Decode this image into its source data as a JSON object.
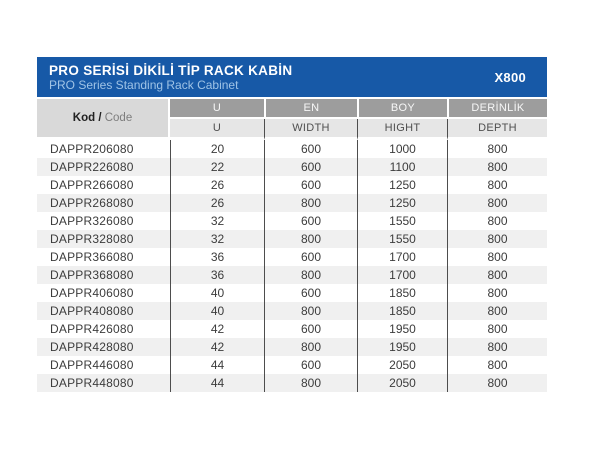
{
  "header": {
    "title_tr": "PRO SERİSİ DİKİLİ TİP RACK KABİN",
    "title_en": "PRO Series Standing Rack Cabinet",
    "model": "X800",
    "banner_color": "#1759a7"
  },
  "table": {
    "code_header": {
      "primary": "Kod /",
      "secondary": "Code"
    },
    "columns_tr": [
      "U",
      "EN",
      "BOY",
      "DERİNLİK"
    ],
    "columns_en": [
      "U",
      "WIDTH",
      "HIGHT",
      "DEPTH"
    ],
    "rows": [
      [
        "DAPPR206080",
        "20",
        "600",
        "1000",
        "800"
      ],
      [
        "DAPPR226080",
        "22",
        "600",
        "1100",
        "800"
      ],
      [
        "DAPPR266080",
        "26",
        "600",
        "1250",
        "800"
      ],
      [
        "DAPPR268080",
        "26",
        "800",
        "1250",
        "800"
      ],
      [
        "DAPPR326080",
        "32",
        "600",
        "1550",
        "800"
      ],
      [
        "DAPPR328080",
        "32",
        "800",
        "1550",
        "800"
      ],
      [
        "DAPPR366080",
        "36",
        "600",
        "1700",
        "800"
      ],
      [
        "DAPPR368080",
        "36",
        "800",
        "1700",
        "800"
      ],
      [
        "DAPPR406080",
        "40",
        "600",
        "1850",
        "800"
      ],
      [
        "DAPPR408080",
        "40",
        "800",
        "1850",
        "800"
      ],
      [
        "DAPPR426080",
        "42",
        "600",
        "1950",
        "800"
      ],
      [
        "DAPPR428080",
        "42",
        "800",
        "1950",
        "800"
      ],
      [
        "DAPPR446080",
        "44",
        "600",
        "2050",
        "800"
      ],
      [
        "DAPPR448080",
        "44",
        "800",
        "2050",
        "800"
      ]
    ]
  },
  "colors": {
    "banner_blue": "#1759a7",
    "subtitle_blue": "#9fc3e6",
    "header_dark_gray": "#9d9d9d",
    "header_light_gray": "#e6e6e6",
    "code_header_gray": "#d9d9d9",
    "alt_row_gray": "#f0f0f0",
    "separator_line": "#4d4d4d"
  }
}
